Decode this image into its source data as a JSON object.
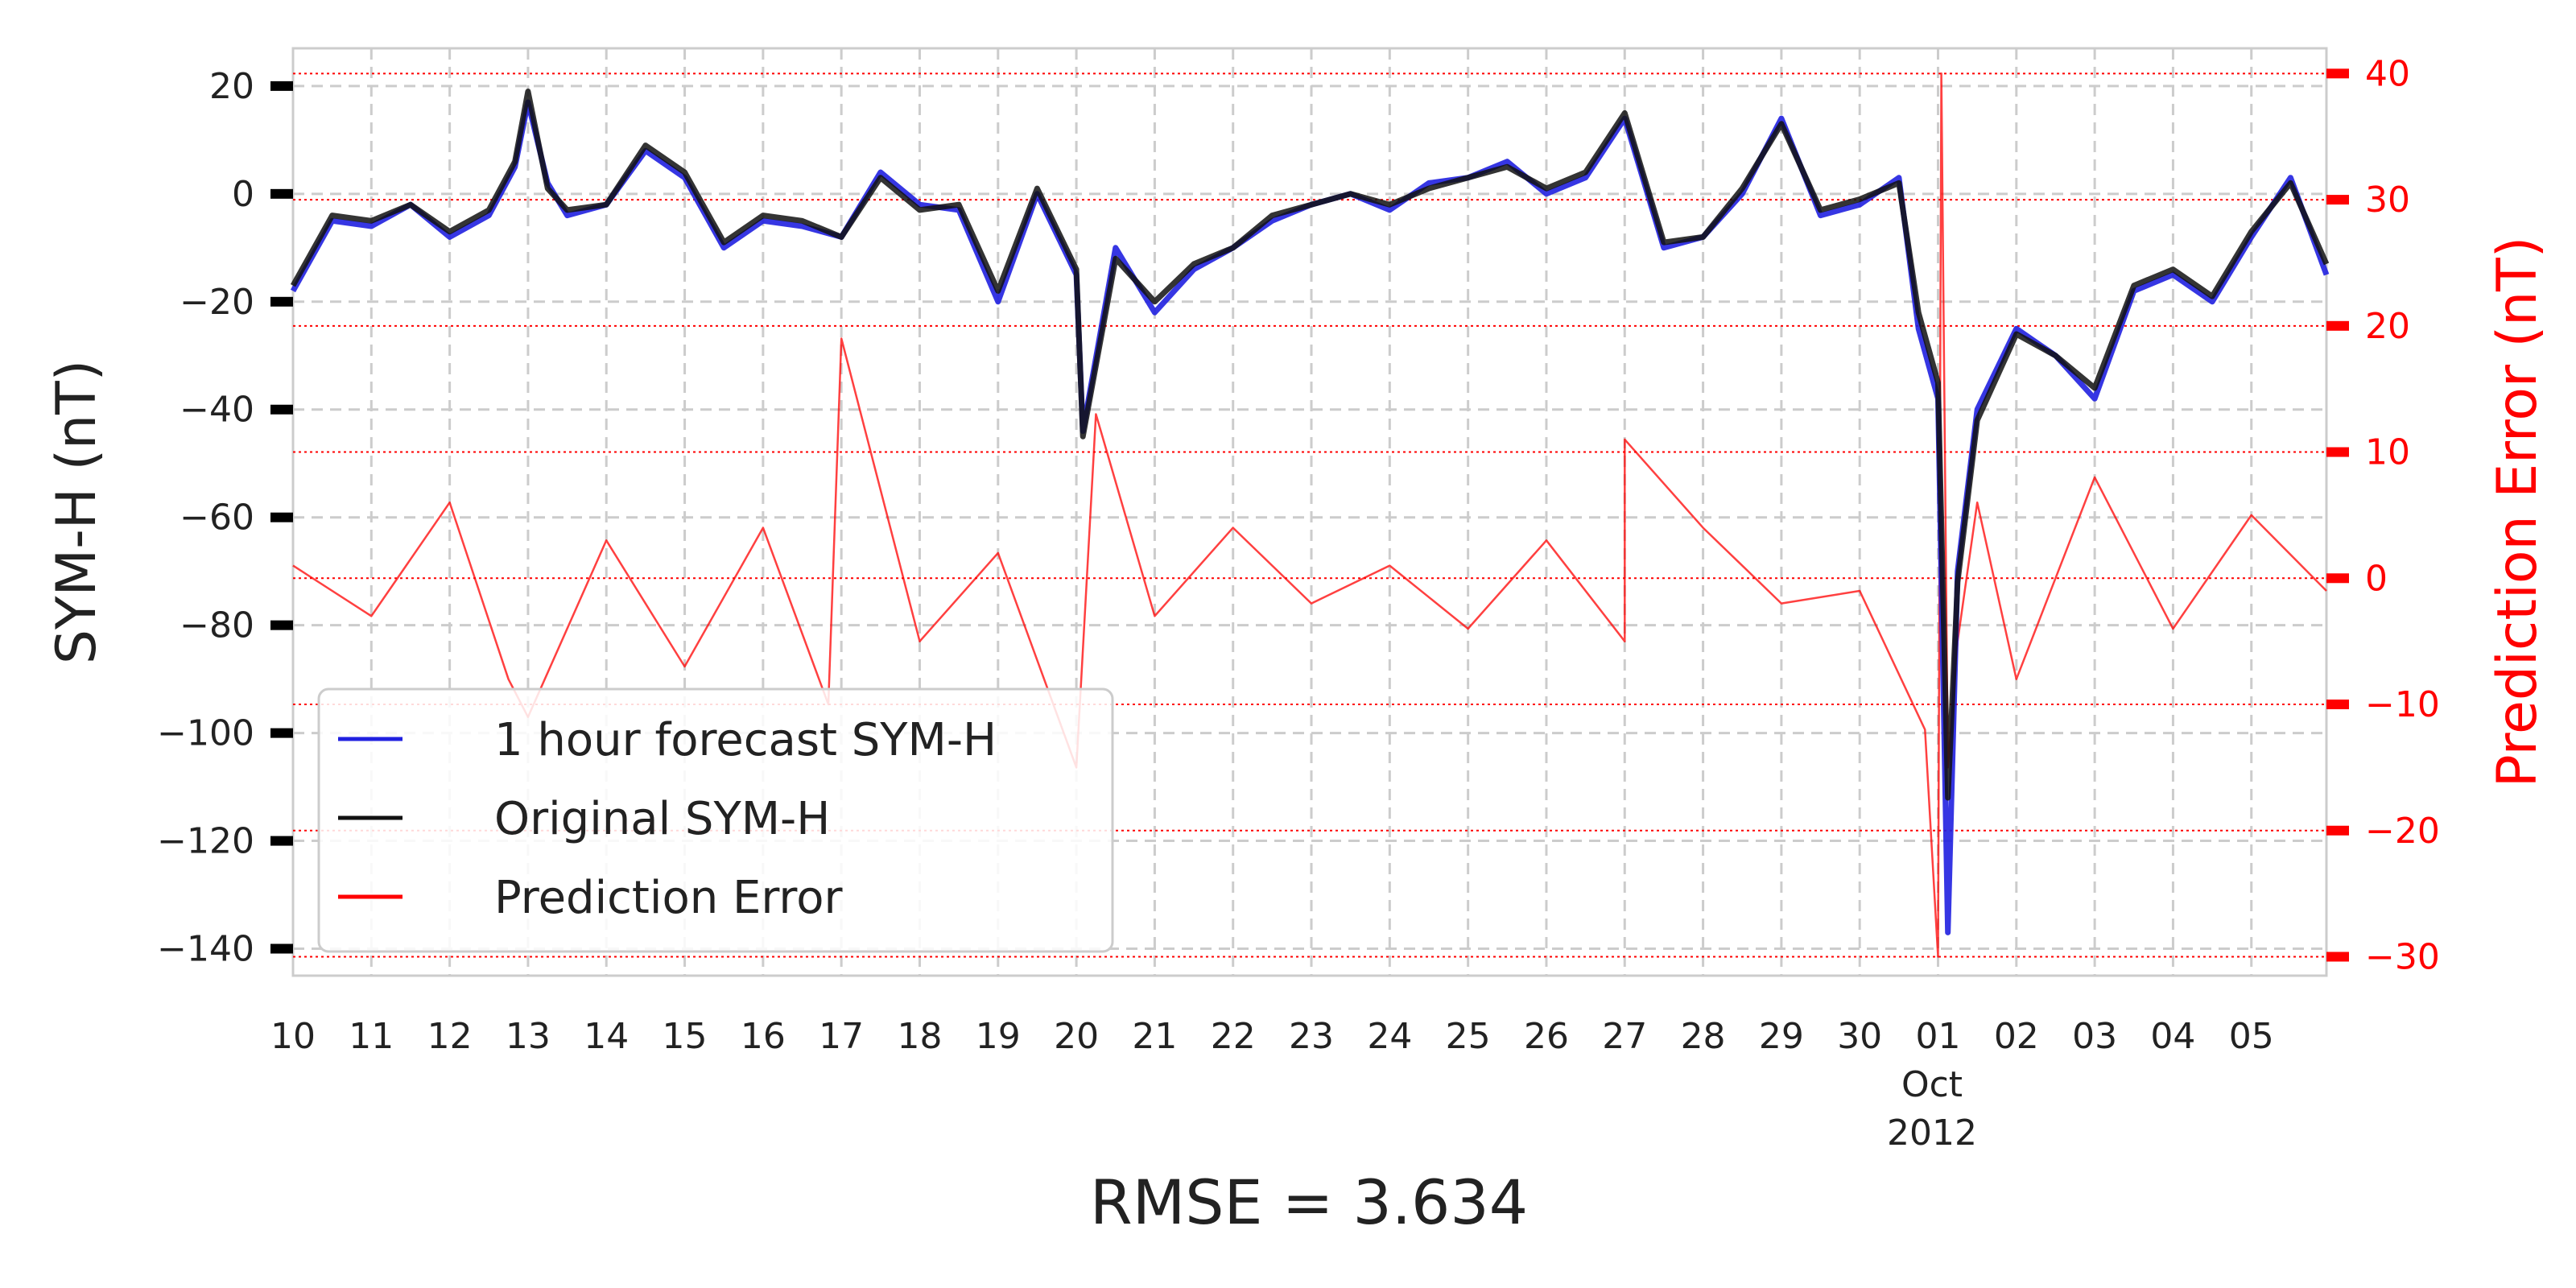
{
  "chart_data": {
    "type": "line",
    "xlabel": "RMSE = 3.634",
    "x_axis": {
      "type": "date",
      "range": [
        "2012-09-10",
        "2012-10-05T23:00"
      ],
      "tick_labels": [
        "10",
        "11",
        "12",
        "13",
        "14",
        "15",
        "16",
        "17",
        "18",
        "19",
        "20",
        "21",
        "22",
        "23",
        "24",
        "25",
        "26",
        "27",
        "28",
        "29",
        "30",
        "01",
        "02",
        "03",
        "04",
        "05"
      ],
      "tick_dates": [
        "2012-09-10",
        "2012-09-11",
        "2012-09-12",
        "2012-09-13",
        "2012-09-14",
        "2012-09-15",
        "2012-09-16",
        "2012-09-17",
        "2012-09-18",
        "2012-09-19",
        "2012-09-20",
        "2012-09-21",
        "2012-09-22",
        "2012-09-23",
        "2012-09-24",
        "2012-09-25",
        "2012-09-26",
        "2012-09-27",
        "2012-09-28",
        "2012-09-29",
        "2012-09-30",
        "2012-10-01",
        "2012-10-02",
        "2012-10-03",
        "2012-10-04",
        "2012-10-05"
      ],
      "month_label": "Oct",
      "year_label": "2012"
    },
    "y_left": {
      "label": "SYM-H (nT)",
      "ylim": [
        -145,
        27
      ],
      "ticks": [
        20,
        0,
        -20,
        -40,
        -60,
        -80,
        -100,
        -120,
        -140
      ],
      "tick_labels": [
        "20",
        "0",
        "−20",
        "−40",
        "−60",
        "−80",
        "−100",
        "−120",
        "−140"
      ]
    },
    "y_right": {
      "label": "Prediction Error (nT)",
      "ylim": [
        -31.5,
        42
      ],
      "ticks": [
        40,
        30,
        20,
        10,
        0,
        -10,
        -20,
        -30
      ],
      "tick_labels": [
        "40",
        "30",
        "20",
        "10",
        "0",
        "−10",
        "−20",
        "−30"
      ]
    },
    "grid": true,
    "legend_position": "lower-left",
    "colors": {
      "forecast": "#2020e0",
      "original": "#111111",
      "error": "#ff0000",
      "right_axis": "#ff0000"
    },
    "series": [
      {
        "name": "1 hour forecast SYM-H",
        "axis": "left",
        "x": [
          "2012-09-10",
          "2012-09-10T12:00",
          "2012-09-11",
          "2012-09-11T12:00",
          "2012-09-12",
          "2012-09-12T12:00",
          "2012-09-12T20:00",
          "2012-09-13",
          "2012-09-13T06:00",
          "2012-09-13T12:00",
          "2012-09-14",
          "2012-09-14T12:00",
          "2012-09-15",
          "2012-09-15T12:00",
          "2012-09-16",
          "2012-09-16T12:00",
          "2012-09-17",
          "2012-09-17T12:00",
          "2012-09-18",
          "2012-09-18T12:00",
          "2012-09-19",
          "2012-09-19T12:00",
          "2012-09-20",
          "2012-09-20T02:00",
          "2012-09-20T12:00",
          "2012-09-21",
          "2012-09-21T12:00",
          "2012-09-22",
          "2012-09-22T12:00",
          "2012-09-23",
          "2012-09-23T12:00",
          "2012-09-24",
          "2012-09-24T12:00",
          "2012-09-25",
          "2012-09-25T12:00",
          "2012-09-26",
          "2012-09-26T12:00",
          "2012-09-27",
          "2012-09-27T12:00",
          "2012-09-28",
          "2012-09-28T12:00",
          "2012-09-29",
          "2012-09-29T12:00",
          "2012-09-30",
          "2012-09-30T12:00",
          "2012-09-30T18:00",
          "2012-10-01",
          "2012-10-01T03:00",
          "2012-10-01T06:00",
          "2012-10-01T12:00",
          "2012-10-02",
          "2012-10-02T12:00",
          "2012-10-03",
          "2012-10-03T12:00",
          "2012-10-04",
          "2012-10-04T12:00",
          "2012-10-05",
          "2012-10-05T12:00",
          "2012-10-05T23:00"
        ],
        "values": [
          -18,
          -5,
          -6,
          -2,
          -8,
          -4,
          5,
          17,
          2,
          -4,
          -2,
          8,
          3,
          -10,
          -5,
          -6,
          -8,
          4,
          -2,
          -3,
          -20,
          0,
          -15,
          -44,
          -10,
          -22,
          -14,
          -10,
          -5,
          -2,
          0,
          -3,
          2,
          3,
          6,
          0,
          3,
          14,
          -10,
          -8,
          0,
          14,
          -4,
          -2,
          3,
          -25,
          -38,
          -137,
          -70,
          -40,
          -25,
          -30,
          -38,
          -18,
          -15,
          -20,
          -8,
          3,
          -15
        ]
      },
      {
        "name": "Original SYM-H",
        "axis": "left",
        "x": [
          "2012-09-10",
          "2012-09-10T12:00",
          "2012-09-11",
          "2012-09-11T12:00",
          "2012-09-12",
          "2012-09-12T12:00",
          "2012-09-12T20:00",
          "2012-09-13",
          "2012-09-13T06:00",
          "2012-09-13T12:00",
          "2012-09-14",
          "2012-09-14T12:00",
          "2012-09-15",
          "2012-09-15T12:00",
          "2012-09-16",
          "2012-09-16T12:00",
          "2012-09-17",
          "2012-09-17T12:00",
          "2012-09-18",
          "2012-09-18T12:00",
          "2012-09-19",
          "2012-09-19T12:00",
          "2012-09-20",
          "2012-09-20T02:00",
          "2012-09-20T12:00",
          "2012-09-21",
          "2012-09-21T12:00",
          "2012-09-22",
          "2012-09-22T12:00",
          "2012-09-23",
          "2012-09-23T12:00",
          "2012-09-24",
          "2012-09-24T12:00",
          "2012-09-25",
          "2012-09-25T12:00",
          "2012-09-26",
          "2012-09-26T12:00",
          "2012-09-27",
          "2012-09-27T12:00",
          "2012-09-28",
          "2012-09-28T12:00",
          "2012-09-29",
          "2012-09-29T12:00",
          "2012-09-30",
          "2012-09-30T12:00",
          "2012-09-30T18:00",
          "2012-10-01",
          "2012-10-01T03:00",
          "2012-10-01T06:00",
          "2012-10-01T12:00",
          "2012-10-02",
          "2012-10-02T12:00",
          "2012-10-03",
          "2012-10-03T12:00",
          "2012-10-04",
          "2012-10-04T12:00",
          "2012-10-05",
          "2012-10-05T12:00",
          "2012-10-05T23:00"
        ],
        "values": [
          -17,
          -4,
          -5,
          -2,
          -7,
          -3,
          6,
          19,
          1,
          -3,
          -2,
          9,
          4,
          -9,
          -4,
          -5,
          -8,
          3,
          -3,
          -2,
          -18,
          1,
          -14,
          -45,
          -12,
          -20,
          -13,
          -10,
          -4,
          -2,
          0,
          -2,
          1,
          3,
          5,
          1,
          4,
          15,
          -9,
          -8,
          1,
          13,
          -3,
          -1,
          2,
          -22,
          -35,
          -112,
          -72,
          -42,
          -26,
          -30,
          -36,
          -17,
          -14,
          -19,
          -7,
          2,
          -13
        ]
      },
      {
        "name": "Prediction Error",
        "axis": "right",
        "x": [
          "2012-09-10",
          "2012-09-11",
          "2012-09-12",
          "2012-09-12T18:00",
          "2012-09-13",
          "2012-09-14",
          "2012-09-15",
          "2012-09-16",
          "2012-09-16T20:00",
          "2012-09-17",
          "2012-09-18",
          "2012-09-19",
          "2012-09-20",
          "2012-09-20T06:00",
          "2012-09-21",
          "2012-09-22",
          "2012-09-23",
          "2012-09-24",
          "2012-09-25",
          "2012-09-26",
          "2012-09-27",
          "2012-09-27T00:00",
          "2012-09-28",
          "2012-09-29",
          "2012-09-30",
          "2012-09-30T20:00",
          "2012-10-01",
          "2012-10-01T01:00",
          "2012-10-01T03:00",
          "2012-10-01T06:00",
          "2012-10-01T12:00",
          "2012-10-02",
          "2012-10-03",
          "2012-10-04",
          "2012-10-05",
          "2012-10-05T23:00"
        ],
        "values": [
          1,
          -3,
          6,
          -8,
          -11,
          3,
          -7,
          4,
          -10,
          19,
          -5,
          2,
          -15,
          13,
          -3,
          4,
          -2,
          1,
          -4,
          3,
          -5,
          11,
          4,
          -2,
          -1,
          -12,
          -30,
          40,
          -15,
          -5,
          6,
          -8,
          8,
          -4,
          5,
          -1
        ]
      }
    ]
  }
}
